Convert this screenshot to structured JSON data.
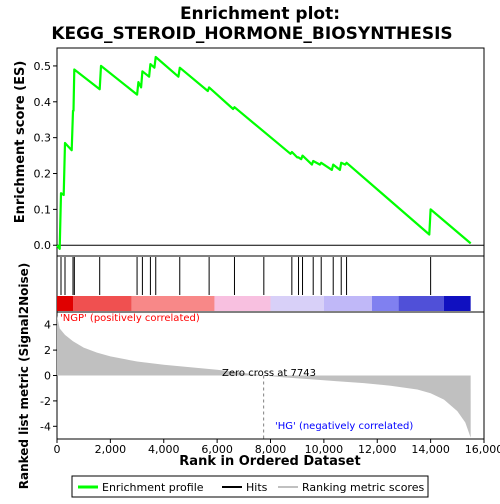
{
  "chart_data": {
    "type": "line",
    "title": "Enrichment plot:\nKEGG_STEROID_HORMONE_BIOSYNTHESIS",
    "title_lines": [
      "Enrichment plot:",
      "KEGG_STEROID_HORMONE_BIOSYNTHESIS"
    ],
    "xlabel": "Rank in Ordered Dataset",
    "ylabel_top": "Enrichment score (ES)",
    "ylabel_bottom": "Ranked list metric (Signal2Noise)",
    "xlim": [
      0,
      16000
    ],
    "x_ticks": [
      0,
      2000,
      4000,
      6000,
      8000,
      10000,
      12000,
      14000,
      16000
    ],
    "x_tick_labels": [
      "0",
      "2,000",
      "4,000",
      "6,000",
      "8,000",
      "10,000",
      "12,000",
      "14,000",
      "16,000"
    ],
    "es_ylim": [
      -0.03,
      0.55
    ],
    "es_ticks": [
      0.0,
      0.1,
      0.2,
      0.3,
      0.4,
      0.5
    ],
    "es_tick_labels": [
      "0.0",
      "0.1",
      "0.2",
      "0.3",
      "0.4",
      "0.5"
    ],
    "metric_ylim": [
      -5,
      5
    ],
    "metric_ticks": [
      -4,
      -2,
      0,
      2,
      4
    ],
    "metric_tick_labels": [
      "-4",
      "-2",
      "0",
      "2",
      "4"
    ],
    "grid": false,
    "colors": {
      "es_line": "#00ff00",
      "hits": "#000000",
      "metric_fill": "#c0c0c0",
      "pos_label": "#ff0000",
      "neg_label": "#0000ff",
      "zero_line": "#808080"
    },
    "enrichment_profile": [
      [
        0,
        0
      ],
      [
        100,
        -0.01
      ],
      [
        150,
        0.145
      ],
      [
        250,
        0.14
      ],
      [
        300,
        0.285
      ],
      [
        550,
        0.265
      ],
      [
        600,
        0.375
      ],
      [
        620,
        0.375
      ],
      [
        650,
        0.49
      ],
      [
        1600,
        0.435
      ],
      [
        1650,
        0.5
      ],
      [
        3000,
        0.42
      ],
      [
        3050,
        0.455
      ],
      [
        3150,
        0.44
      ],
      [
        3200,
        0.485
      ],
      [
        3450,
        0.47
      ],
      [
        3500,
        0.505
      ],
      [
        3650,
        0.495
      ],
      [
        3700,
        0.525
      ],
      [
        4550,
        0.47
      ],
      [
        4600,
        0.495
      ],
      [
        5650,
        0.43
      ],
      [
        5700,
        0.44
      ],
      [
        6600,
        0.38
      ],
      [
        6650,
        0.385
      ],
      [
        8750,
        0.255
      ],
      [
        8800,
        0.26
      ],
      [
        9000,
        0.245
      ],
      [
        9050,
        0.245
      ],
      [
        9150,
        0.24
      ],
      [
        9200,
        0.25
      ],
      [
        9550,
        0.225
      ],
      [
        9600,
        0.235
      ],
      [
        9850,
        0.225
      ],
      [
        9900,
        0.23
      ],
      [
        10300,
        0.21
      ],
      [
        10350,
        0.225
      ],
      [
        10600,
        0.21
      ],
      [
        10650,
        0.23
      ],
      [
        10800,
        0.225
      ],
      [
        10850,
        0.23
      ],
      [
        13950,
        0.03
      ],
      [
        14000,
        0.1
      ],
      [
        15500,
        0.005
      ]
    ],
    "hits": [
      150,
      300,
      600,
      650,
      1600,
      3000,
      3200,
      3500,
      3700,
      4600,
      5700,
      6650,
      7750,
      8800,
      9050,
      9200,
      9600,
      9900,
      10350,
      10650,
      10850,
      14000
    ],
    "metric_curve": [
      [
        0,
        4.7
      ],
      [
        100,
        3.7
      ],
      [
        300,
        3.2
      ],
      [
        600,
        2.7
      ],
      [
        1000,
        2.2
      ],
      [
        1500,
        1.8
      ],
      [
        2000,
        1.5
      ],
      [
        3000,
        1.1
      ],
      [
        4000,
        0.85
      ],
      [
        5000,
        0.65
      ],
      [
        6000,
        0.45
      ],
      [
        7000,
        0.2
      ],
      [
        7743,
        0
      ],
      [
        8500,
        -0.15
      ],
      [
        9500,
        -0.3
      ],
      [
        10500,
        -0.45
      ],
      [
        11500,
        -0.6
      ],
      [
        12500,
        -0.8
      ],
      [
        13500,
        -1.1
      ],
      [
        14000,
        -1.4
      ],
      [
        14500,
        -1.9
      ],
      [
        15000,
        -2.8
      ],
      [
        15300,
        -3.7
      ],
      [
        15500,
        -4.9
      ]
    ],
    "heat_bands": [
      {
        "from": 0,
        "to": 600,
        "color": "#e00000"
      },
      {
        "from": 600,
        "to": 2800,
        "color": "#f05050"
      },
      {
        "from": 2800,
        "to": 5900,
        "color": "#f88888"
      },
      {
        "from": 5900,
        "to": 8000,
        "color": "#f8c0e0"
      },
      {
        "from": 8000,
        "to": 10000,
        "color": "#d8d0f8"
      },
      {
        "from": 10000,
        "to": 11800,
        "color": "#c0b8f8"
      },
      {
        "from": 11800,
        "to": 12800,
        "color": "#8080f0"
      },
      {
        "from": 12800,
        "to": 14500,
        "color": "#5050d8"
      },
      {
        "from": 14500,
        "to": 15500,
        "color": "#1010c0"
      }
    ],
    "annotations": {
      "pos_label": "'NGP' (positively correlated)",
      "neg_label": "'HG' (negatively correlated)",
      "zero_cross": "Zero cross at 7743"
    },
    "legend": {
      "placement": "bottom",
      "entries": [
        "Enrichment profile",
        "Hits",
        "Ranking metric scores"
      ]
    }
  }
}
